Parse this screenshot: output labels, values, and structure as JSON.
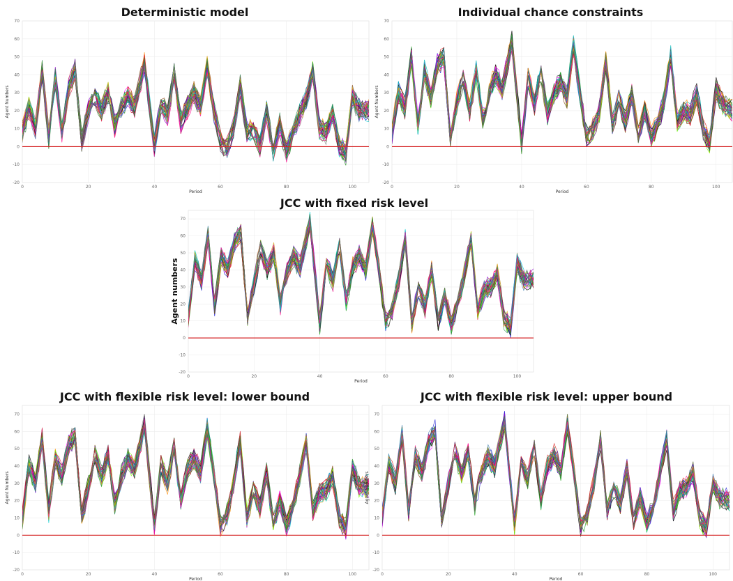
{
  "chart_data": [
    {
      "id": "p1",
      "type": "line",
      "title": "Deterministic model",
      "xlabel": "Period",
      "ylabel": "Agent Numbers",
      "xlim": [
        0,
        105
      ],
      "ylim": [
        -20,
        70
      ],
      "xticks": [
        0,
        20,
        40,
        60,
        80,
        100
      ],
      "yticks": [
        -20,
        -10,
        0,
        10,
        20,
        30,
        40,
        50,
        60,
        70
      ],
      "grid": true,
      "reference_line": {
        "y": 0,
        "color": "#d62728"
      },
      "series_count": 40,
      "spread": 6,
      "profile": [
        [
          0,
          8
        ],
        [
          2,
          22
        ],
        [
          4,
          10
        ],
        [
          6,
          42
        ],
        [
          8,
          5
        ],
        [
          10,
          38
        ],
        [
          12,
          8
        ],
        [
          14,
          32
        ],
        [
          16,
          42
        ],
        [
          18,
          3
        ],
        [
          20,
          20
        ],
        [
          22,
          28
        ],
        [
          24,
          20
        ],
        [
          26,
          30
        ],
        [
          28,
          12
        ],
        [
          30,
          22
        ],
        [
          32,
          28
        ],
        [
          34,
          22
        ],
        [
          37,
          46
        ],
        [
          40,
          0
        ],
        [
          42,
          24
        ],
        [
          44,
          18
        ],
        [
          46,
          40
        ],
        [
          48,
          14
        ],
        [
          50,
          22
        ],
        [
          52,
          30
        ],
        [
          54,
          22
        ],
        [
          56,
          44
        ],
        [
          58,
          20
        ],
        [
          60,
          3
        ],
        [
          62,
          -1
        ],
        [
          64,
          10
        ],
        [
          66,
          34
        ],
        [
          68,
          8
        ],
        [
          70,
          10
        ],
        [
          72,
          0
        ],
        [
          74,
          20
        ],
        [
          76,
          -2
        ],
        [
          78,
          12
        ],
        [
          80,
          -2
        ],
        [
          82,
          6
        ],
        [
          84,
          18
        ],
        [
          86,
          26
        ],
        [
          88,
          42
        ],
        [
          90,
          10
        ],
        [
          92,
          8
        ],
        [
          94,
          18
        ],
        [
          96,
          0
        ],
        [
          98,
          -4
        ],
        [
          100,
          28
        ],
        [
          102,
          20
        ],
        [
          105,
          20
        ]
      ]
    },
    {
      "id": "p2",
      "type": "line",
      "title": "Individual chance constraints",
      "xlabel": "Period",
      "ylabel": "Agent Numbers",
      "xlim": [
        0,
        105
      ],
      "ylim": [
        -20,
        70
      ],
      "xticks": [
        0,
        20,
        40,
        60,
        80,
        100
      ],
      "yticks": [
        -20,
        -10,
        0,
        10,
        20,
        30,
        40,
        50,
        60,
        70
      ],
      "grid": true,
      "reference_line": {
        "y": 0,
        "color": "#d62728"
      },
      "series_count": 40,
      "spread": 6,
      "profile": [
        [
          0,
          8
        ],
        [
          2,
          30
        ],
        [
          4,
          22
        ],
        [
          6,
          50
        ],
        [
          8,
          12
        ],
        [
          10,
          42
        ],
        [
          12,
          28
        ],
        [
          14,
          46
        ],
        [
          16,
          50
        ],
        [
          18,
          5
        ],
        [
          20,
          24
        ],
        [
          22,
          38
        ],
        [
          24,
          20
        ],
        [
          26,
          42
        ],
        [
          28,
          16
        ],
        [
          30,
          30
        ],
        [
          32,
          40
        ],
        [
          34,
          32
        ],
        [
          37,
          58
        ],
        [
          40,
          2
        ],
        [
          42,
          38
        ],
        [
          44,
          24
        ],
        [
          46,
          42
        ],
        [
          48,
          18
        ],
        [
          50,
          30
        ],
        [
          52,
          36
        ],
        [
          54,
          28
        ],
        [
          56,
          56
        ],
        [
          58,
          30
        ],
        [
          60,
          6
        ],
        [
          62,
          10
        ],
        [
          64,
          20
        ],
        [
          66,
          48
        ],
        [
          68,
          12
        ],
        [
          70,
          26
        ],
        [
          72,
          14
        ],
        [
          74,
          30
        ],
        [
          76,
          6
        ],
        [
          78,
          20
        ],
        [
          80,
          6
        ],
        [
          82,
          12
        ],
        [
          84,
          26
        ],
        [
          86,
          50
        ],
        [
          88,
          14
        ],
        [
          90,
          20
        ],
        [
          92,
          18
        ],
        [
          94,
          30
        ],
        [
          96,
          10
        ],
        [
          98,
          2
        ],
        [
          100,
          32
        ],
        [
          102,
          24
        ],
        [
          105,
          20
        ]
      ]
    },
    {
      "id": "p3",
      "type": "line",
      "title": "JCC with fixed risk level",
      "xlabel": "Period",
      "ylabel": "Agent numbers",
      "xlim": [
        0,
        105
      ],
      "ylim": [
        -20,
        75
      ],
      "xticks": [
        0,
        20,
        40,
        60,
        80,
        100
      ],
      "yticks": [
        -20,
        -10,
        0,
        10,
        20,
        30,
        40,
        50,
        60,
        70
      ],
      "grid": true,
      "reference_line": {
        "y": 0,
        "color": "#d62728"
      },
      "series_count": 40,
      "spread": 6,
      "profile": [
        [
          0,
          12
        ],
        [
          2,
          46
        ],
        [
          4,
          34
        ],
        [
          6,
          60
        ],
        [
          8,
          18
        ],
        [
          10,
          48
        ],
        [
          12,
          40
        ],
        [
          14,
          56
        ],
        [
          16,
          62
        ],
        [
          18,
          12
        ],
        [
          20,
          32
        ],
        [
          22,
          52
        ],
        [
          24,
          40
        ],
        [
          26,
          50
        ],
        [
          28,
          20
        ],
        [
          30,
          38
        ],
        [
          32,
          48
        ],
        [
          34,
          42
        ],
        [
          37,
          68
        ],
        [
          40,
          8
        ],
        [
          42,
          44
        ],
        [
          44,
          34
        ],
        [
          46,
          54
        ],
        [
          48,
          22
        ],
        [
          50,
          42
        ],
        [
          52,
          48
        ],
        [
          54,
          40
        ],
        [
          56,
          66
        ],
        [
          58,
          40
        ],
        [
          60,
          10
        ],
        [
          62,
          16
        ],
        [
          64,
          34
        ],
        [
          66,
          58
        ],
        [
          68,
          8
        ],
        [
          70,
          30
        ],
        [
          72,
          18
        ],
        [
          74,
          40
        ],
        [
          76,
          10
        ],
        [
          78,
          24
        ],
        [
          80,
          8
        ],
        [
          82,
          20
        ],
        [
          84,
          38
        ],
        [
          86,
          58
        ],
        [
          88,
          16
        ],
        [
          90,
          28
        ],
        [
          92,
          30
        ],
        [
          94,
          38
        ],
        [
          96,
          12
        ],
        [
          98,
          6
        ],
        [
          100,
          44
        ],
        [
          102,
          34
        ],
        [
          105,
          34
        ]
      ]
    },
    {
      "id": "p4",
      "type": "line",
      "title": "JCC with flexible risk level: lower bound",
      "xlabel": "Period",
      "ylabel": "Agent Numbers",
      "xlim": [
        0,
        105
      ],
      "ylim": [
        -20,
        75
      ],
      "xticks": [
        0,
        20,
        40,
        60,
        80,
        100
      ],
      "yticks": [
        -20,
        -10,
        0,
        10,
        20,
        30,
        40,
        50,
        60,
        70
      ],
      "grid": true,
      "reference_line": {
        "y": 0,
        "color": "#d62728"
      },
      "series_count": 40,
      "spread": 6,
      "profile": [
        [
          0,
          10
        ],
        [
          2,
          40
        ],
        [
          4,
          30
        ],
        [
          6,
          56
        ],
        [
          8,
          14
        ],
        [
          10,
          44
        ],
        [
          12,
          34
        ],
        [
          14,
          52
        ],
        [
          16,
          58
        ],
        [
          18,
          10
        ],
        [
          20,
          28
        ],
        [
          22,
          46
        ],
        [
          24,
          34
        ],
        [
          26,
          46
        ],
        [
          28,
          18
        ],
        [
          30,
          34
        ],
        [
          32,
          44
        ],
        [
          34,
          38
        ],
        [
          37,
          64
        ],
        [
          40,
          6
        ],
        [
          42,
          40
        ],
        [
          44,
          30
        ],
        [
          46,
          50
        ],
        [
          48,
          20
        ],
        [
          50,
          38
        ],
        [
          52,
          44
        ],
        [
          54,
          36
        ],
        [
          56,
          62
        ],
        [
          58,
          36
        ],
        [
          60,
          6
        ],
        [
          62,
          12
        ],
        [
          64,
          30
        ],
        [
          66,
          54
        ],
        [
          68,
          10
        ],
        [
          70,
          26
        ],
        [
          72,
          16
        ],
        [
          74,
          36
        ],
        [
          76,
          6
        ],
        [
          78,
          20
        ],
        [
          80,
          6
        ],
        [
          82,
          16
        ],
        [
          84,
          34
        ],
        [
          86,
          54
        ],
        [
          88,
          14
        ],
        [
          90,
          24
        ],
        [
          92,
          26
        ],
        [
          94,
          34
        ],
        [
          96,
          10
        ],
        [
          98,
          4
        ],
        [
          100,
          38
        ],
        [
          102,
          28
        ],
        [
          105,
          28
        ]
      ]
    },
    {
      "id": "p5",
      "type": "line",
      "title": "JCC with flexible risk level: upper bound",
      "xlabel": "Period",
      "ylabel": "Agent Numbers",
      "xlim": [
        0,
        105
      ],
      "ylim": [
        -20,
        75
      ],
      "xticks": [
        0,
        20,
        40,
        60,
        80,
        100
      ],
      "yticks": [
        -20,
        -10,
        0,
        10,
        20,
        30,
        40,
        50,
        60,
        70
      ],
      "grid": true,
      "reference_line": {
        "y": 0,
        "color": "#d62728"
      },
      "series_count": 40,
      "spread": 6,
      "profile": [
        [
          0,
          10
        ],
        [
          2,
          42
        ],
        [
          4,
          30
        ],
        [
          6,
          58
        ],
        [
          8,
          14
        ],
        [
          10,
          46
        ],
        [
          12,
          36
        ],
        [
          14,
          54
        ],
        [
          16,
          60
        ],
        [
          18,
          10
        ],
        [
          20,
          30
        ],
        [
          22,
          48
        ],
        [
          24,
          36
        ],
        [
          26,
          48
        ],
        [
          28,
          18
        ],
        [
          30,
          36
        ],
        [
          32,
          46
        ],
        [
          34,
          40
        ],
        [
          37,
          66
        ],
        [
          40,
          6
        ],
        [
          42,
          42
        ],
        [
          44,
          32
        ],
        [
          46,
          52
        ],
        [
          48,
          20
        ],
        [
          50,
          40
        ],
        [
          52,
          46
        ],
        [
          54,
          38
        ],
        [
          56,
          64
        ],
        [
          58,
          36
        ],
        [
          60,
          6
        ],
        [
          62,
          12
        ],
        [
          64,
          30
        ],
        [
          66,
          56
        ],
        [
          68,
          14
        ],
        [
          70,
          28
        ],
        [
          72,
          18
        ],
        [
          74,
          38
        ],
        [
          76,
          8
        ],
        [
          78,
          22
        ],
        [
          80,
          8
        ],
        [
          82,
          16
        ],
        [
          84,
          36
        ],
        [
          86,
          56
        ],
        [
          88,
          14
        ],
        [
          90,
          26
        ],
        [
          92,
          28
        ],
        [
          94,
          36
        ],
        [
          96,
          10
        ],
        [
          98,
          4
        ],
        [
          100,
          30
        ],
        [
          102,
          22
        ],
        [
          105,
          20
        ]
      ]
    }
  ]
}
